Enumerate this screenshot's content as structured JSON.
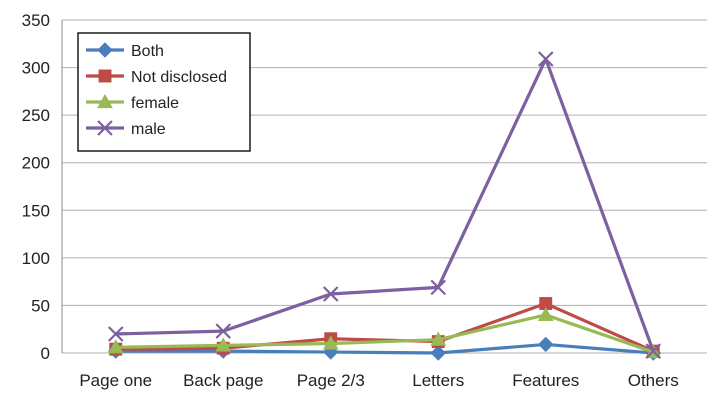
{
  "chart_data": {
    "type": "line",
    "title": "",
    "xlabel": "",
    "ylabel": "",
    "categories": [
      "Page one",
      "Back page",
      "Page 2/3",
      "Letters",
      "Features",
      "Others"
    ],
    "ylim": [
      0,
      350
    ],
    "yticks": [
      "0",
      "50",
      "100",
      "150",
      "200",
      "250",
      "300",
      "350"
    ],
    "grid": "horizontal",
    "legend_position": "top-left",
    "series": [
      {
        "name": "Both",
        "color": "#4a7ebb",
        "marker": "diamond",
        "values": [
          2,
          2,
          1,
          0,
          9,
          0
        ]
      },
      {
        "name": "Not disclosed",
        "color": "#be4b48",
        "marker": "square",
        "values": [
          4,
          5,
          15,
          12,
          52,
          2
        ]
      },
      {
        "name": "female",
        "color": "#98b954",
        "marker": "triangle",
        "values": [
          6,
          8,
          10,
          14,
          40,
          1
        ]
      },
      {
        "name": "male",
        "color": "#7d60a0",
        "marker": "x",
        "values": [
          20,
          23,
          62,
          69,
          309,
          2
        ]
      }
    ]
  }
}
